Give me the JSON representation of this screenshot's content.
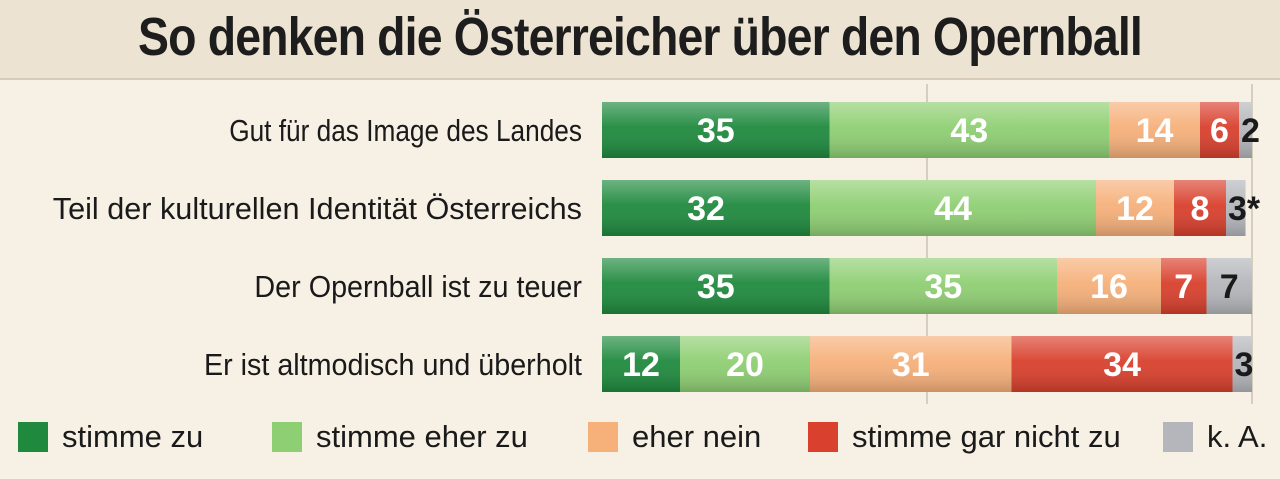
{
  "title": "So denken die Österreicher über den Opernball",
  "colors": {
    "stimme_zu": "#1f8a3e",
    "stimme_eher_zu": "#8fcf73",
    "eher_nein": "#f6b07a",
    "stimme_gar_nicht_zu": "#d9402d",
    "k_a": "#b4b6bb"
  },
  "legend": [
    {
      "label": "stimme zu",
      "color": "#1f8a3e"
    },
    {
      "label": "stimme eher zu",
      "color": "#8fcf73"
    },
    {
      "label": "eher nein",
      "color": "#f6b07a"
    },
    {
      "label": "stimme gar nicht zu",
      "color": "#d9402d"
    },
    {
      "label": "k. A.",
      "color": "#b4b6bb"
    }
  ],
  "chart_data": {
    "type": "bar",
    "orientation": "horizontal",
    "stacked": true,
    "title": "So denken die Österreicher über den Opernball",
    "categories": [
      "Gut für das Image des Landes",
      "Teil der kulturellen Identität Österreichs",
      "Der Opernball ist zu teuer",
      "Er ist altmodisch und überholt"
    ],
    "series": [
      {
        "name": "stimme zu",
        "values": [
          35,
          32,
          35,
          12
        ]
      },
      {
        "name": "stimme eher zu",
        "values": [
          43,
          44,
          35,
          20
        ]
      },
      {
        "name": "eher nein",
        "values": [
          14,
          12,
          16,
          31
        ]
      },
      {
        "name": "stimme gar nicht zu",
        "values": [
          6,
          8,
          7,
          34
        ]
      },
      {
        "name": "k. A.",
        "values": [
          2,
          3,
          7,
          3
        ]
      }
    ],
    "value_labels": [
      [
        "35",
        "43",
        "14",
        "6",
        "2"
      ],
      [
        "32",
        "44",
        "12",
        "8",
        "3*"
      ],
      [
        "35",
        "35",
        "16",
        "7",
        "7"
      ],
      [
        "12",
        "20",
        "31",
        "34",
        "3"
      ]
    ],
    "xlim": [
      0,
      100
    ],
    "legend_position": "bottom",
    "grid": true
  }
}
